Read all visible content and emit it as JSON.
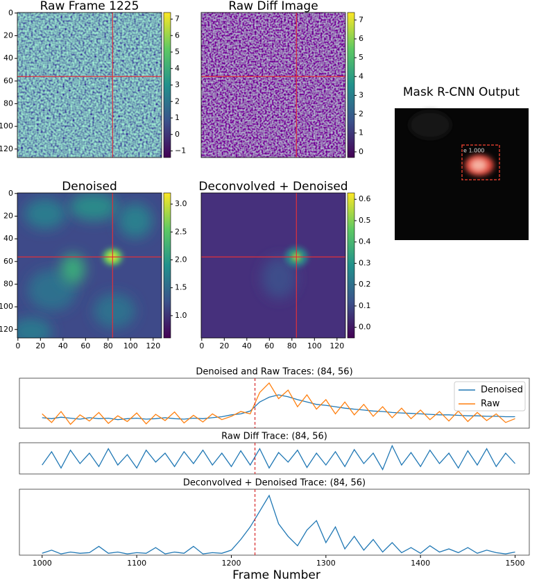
{
  "chart_data": [
    {
      "type": "heatmap",
      "title": "Raw Frame 1225",
      "cmap": "viridis",
      "xlim": [
        -0.5,
        127.5
      ],
      "ylim": [
        127.5,
        -0.5
      ],
      "yticks": [
        0,
        20,
        40,
        60,
        80,
        100,
        120
      ],
      "crosshair": {
        "x": 84,
        "y": 56
      },
      "crosshair_color": "#e0303a",
      "colorbar": {
        "lim": [
          -1.4,
          7.4
        ],
        "ticks": [
          {
            "value": -1,
            "label": "−1"
          },
          0,
          1,
          2,
          3,
          4,
          5,
          6,
          7
        ]
      }
    },
    {
      "type": "heatmap",
      "title": "Raw Diff Image",
      "cmap": "viridis",
      "xlim": [
        -0.5,
        127.5
      ],
      "ylim": [
        127.5,
        -0.5
      ],
      "crosshair": {
        "x": 84,
        "y": 56
      },
      "crosshair_color": "#e0303a",
      "colorbar": {
        "lim": [
          -0.3,
          7.4
        ],
        "ticks": [
          0,
          1,
          2,
          3,
          4,
          5,
          6,
          7
        ]
      }
    },
    {
      "type": "heatmap",
      "title": "Denoised",
      "cmap": "viridis",
      "xlim": [
        -0.5,
        127.5
      ],
      "ylim": [
        127.5,
        -0.5
      ],
      "xticks": [
        0,
        20,
        40,
        60,
        80,
        100,
        120
      ],
      "yticks": [
        0,
        20,
        40,
        60,
        80,
        100,
        120
      ],
      "crosshair": {
        "x": 84,
        "y": 56
      },
      "crosshair_color": "#e0303a",
      "colorbar": {
        "lim": [
          0.6,
          3.2
        ],
        "ticks": [
          {
            "value": 1,
            "label": "1.0"
          },
          1.5,
          {
            "value": 2,
            "label": "2.0"
          },
          2.5,
          {
            "value": 3,
            "label": "3.0"
          }
        ]
      }
    },
    {
      "type": "heatmap",
      "title": "Deconvolved + Denoised",
      "cmap": "viridis",
      "xlim": [
        -0.5,
        127.5
      ],
      "ylim": [
        127.5,
        -0.5
      ],
      "xticks": [
        0,
        20,
        40,
        60,
        80,
        100,
        120
      ],
      "crosshair": {
        "x": 84,
        "y": 56
      },
      "crosshair_color": "#e0303a",
      "colorbar": {
        "lim": [
          -0.05,
          0.63
        ],
        "ticks": [
          {
            "value": 0,
            "label": "0.0"
          },
          0.1,
          0.2,
          0.3,
          0.4,
          0.5,
          0.6
        ]
      }
    },
    {
      "type": "image",
      "title": "Mask R-CNN Output",
      "annotation": "e 1.000"
    },
    {
      "type": "line",
      "title": "Denoised and Raw Traces: (84, 56)",
      "xlim": [
        976,
        1515
      ],
      "ylim": [
        0,
        1.05
      ],
      "vline": 1225,
      "vline_color": "#d62728",
      "legend": "upper right",
      "x": [
        1000,
        1010,
        1020,
        1030,
        1040,
        1050,
        1060,
        1070,
        1080,
        1090,
        1100,
        1110,
        1120,
        1130,
        1140,
        1150,
        1160,
        1170,
        1180,
        1190,
        1200,
        1210,
        1220,
        1230,
        1240,
        1250,
        1260,
        1270,
        1280,
        1290,
        1300,
        1310,
        1320,
        1330,
        1340,
        1350,
        1360,
        1370,
        1380,
        1390,
        1400,
        1410,
        1420,
        1430,
        1440,
        1450,
        1460,
        1470,
        1480,
        1490,
        1500
      ],
      "series": [
        {
          "name": "Denoised",
          "color": "#1f77b4",
          "values": [
            0.22,
            0.2,
            0.23,
            0.21,
            0.19,
            0.22,
            0.2,
            0.21,
            0.18,
            0.2,
            0.21,
            0.19,
            0.2,
            0.22,
            0.2,
            0.19,
            0.21,
            0.2,
            0.22,
            0.24,
            0.28,
            0.3,
            0.36,
            0.55,
            0.65,
            0.7,
            0.66,
            0.6,
            0.55,
            0.5,
            0.48,
            0.45,
            0.42,
            0.4,
            0.38,
            0.36,
            0.35,
            0.33,
            0.32,
            0.31,
            0.3,
            0.29,
            0.28,
            0.28,
            0.27,
            0.26,
            0.26,
            0.25,
            0.25,
            0.24,
            0.24
          ]
        },
        {
          "name": "Raw",
          "color": "#ff7f0e",
          "values": [
            0.3,
            0.12,
            0.35,
            0.08,
            0.28,
            0.15,
            0.33,
            0.1,
            0.26,
            0.14,
            0.32,
            0.09,
            0.29,
            0.16,
            0.34,
            0.11,
            0.27,
            0.13,
            0.3,
            0.18,
            0.25,
            0.35,
            0.3,
            0.75,
            0.95,
            0.62,
            0.8,
            0.45,
            0.7,
            0.4,
            0.6,
            0.3,
            0.55,
            0.28,
            0.5,
            0.25,
            0.45,
            0.22,
            0.42,
            0.2,
            0.38,
            0.18,
            0.35,
            0.15,
            0.36,
            0.14,
            0.33,
            0.16,
            0.3,
            0.12,
            0.2
          ]
        }
      ]
    },
    {
      "type": "line",
      "title": "Raw Diff Trace: (84, 56)",
      "xlim": [
        976,
        1515
      ],
      "ylim": [
        0,
        1.05
      ],
      "vline": 1225,
      "vline_color": "#d62728",
      "x": [
        1000,
        1010,
        1020,
        1030,
        1040,
        1050,
        1060,
        1070,
        1080,
        1090,
        1100,
        1110,
        1120,
        1130,
        1140,
        1150,
        1160,
        1170,
        1180,
        1190,
        1200,
        1210,
        1220,
        1230,
        1240,
        1250,
        1260,
        1270,
        1280,
        1290,
        1300,
        1310,
        1320,
        1330,
        1340,
        1350,
        1360,
        1370,
        1380,
        1390,
        1400,
        1410,
        1420,
        1430,
        1440,
        1450,
        1460,
        1470,
        1480,
        1490,
        1500
      ],
      "series": [
        {
          "color": "#1f77b4",
          "values": [
            0.3,
            0.75,
            0.2,
            0.8,
            0.35,
            0.7,
            0.25,
            0.85,
            0.3,
            0.65,
            0.2,
            0.8,
            0.4,
            0.7,
            0.25,
            0.75,
            0.35,
            0.8,
            0.3,
            0.7,
            0.25,
            0.78,
            0.3,
            0.85,
            0.2,
            0.72,
            0.4,
            0.8,
            0.22,
            0.7,
            0.3,
            0.75,
            0.25,
            0.82,
            0.35,
            0.7,
            0.15,
            0.95,
            0.3,
            0.72,
            0.25,
            0.8,
            0.35,
            0.7,
            0.2,
            0.78,
            0.3,
            0.85,
            0.25,
            0.7,
            0.35
          ]
        }
      ]
    },
    {
      "type": "line",
      "title": "Deconvolved + Denoised Trace: (84, 56)",
      "xlabel": "Frame Number",
      "xlim": [
        976,
        1515
      ],
      "ylim": [
        0,
        1.05
      ],
      "vline": 1225,
      "vline_color": "#d62728",
      "xticks": [
        1000,
        1100,
        1200,
        1300,
        1400,
        1500
      ],
      "x": [
        1000,
        1010,
        1020,
        1030,
        1040,
        1050,
        1060,
        1070,
        1080,
        1090,
        1100,
        1110,
        1120,
        1130,
        1140,
        1150,
        1160,
        1170,
        1180,
        1190,
        1200,
        1210,
        1220,
        1230,
        1240,
        1250,
        1260,
        1270,
        1280,
        1290,
        1300,
        1310,
        1320,
        1330,
        1340,
        1350,
        1360,
        1370,
        1380,
        1390,
        1400,
        1410,
        1420,
        1430,
        1440,
        1450,
        1460,
        1470,
        1480,
        1490,
        1500
      ],
      "series": [
        {
          "color": "#1f77b4",
          "values": [
            0.03,
            0.08,
            0.02,
            0.05,
            0.03,
            0.04,
            0.14,
            0.03,
            0.05,
            0.02,
            0.04,
            0.03,
            0.12,
            0.02,
            0.05,
            0.03,
            0.14,
            0.02,
            0.04,
            0.03,
            0.08,
            0.25,
            0.45,
            0.7,
            0.95,
            0.5,
            0.3,
            0.15,
            0.4,
            0.55,
            0.2,
            0.45,
            0.1,
            0.3,
            0.08,
            0.25,
            0.05,
            0.2,
            0.04,
            0.12,
            0.03,
            0.15,
            0.05,
            0.1,
            0.04,
            0.12,
            0.03,
            0.08,
            0.04,
            0.02,
            0.05
          ]
        }
      ]
    }
  ]
}
